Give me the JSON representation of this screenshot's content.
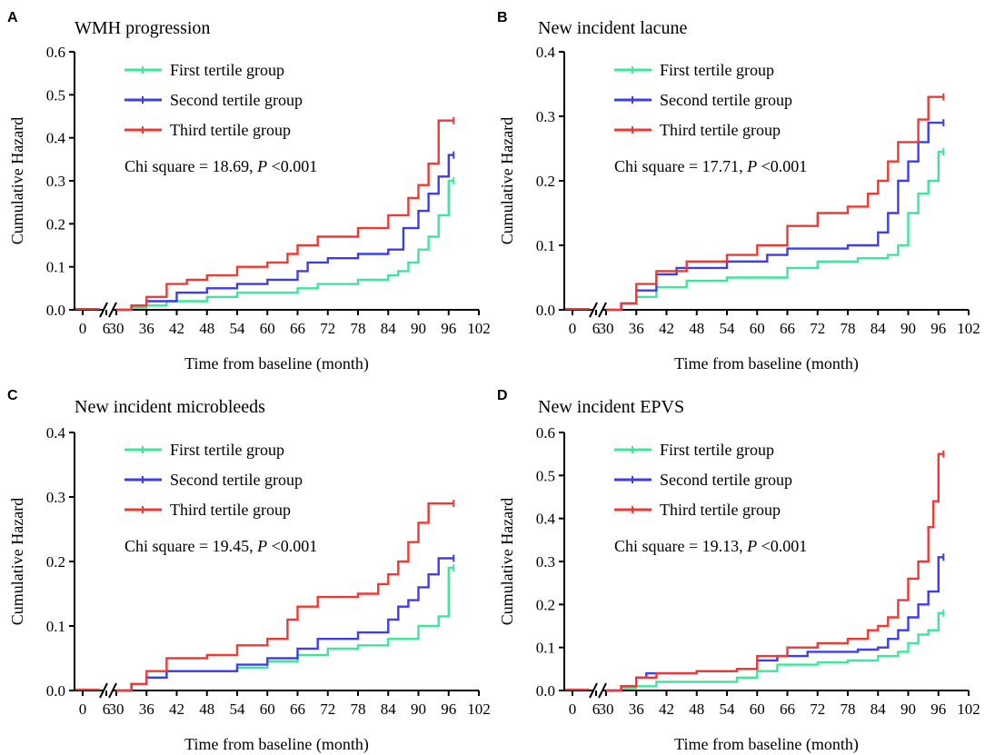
{
  "series_names": [
    "First tertile group",
    "Second tertile group",
    "Third tertile group"
  ],
  "series_colors": [
    "#3ee69a",
    "#3d3dea",
    "#ee3a32"
  ],
  "chart_data": [
    {
      "type": "line",
      "panel_letter": "A",
      "title": "WMH progression",
      "xlabel": "Time from baseline (month)",
      "ylabel": "Cumulative Hazard",
      "ylim": [
        0,
        0.6
      ],
      "yticks": [
        "0.0",
        "0.1",
        "0.2",
        "0.3",
        "0.4",
        "0.5",
        "0.6"
      ],
      "xticks": [
        "0",
        "6",
        "30",
        "36",
        "42",
        "48",
        "54",
        "60",
        "66",
        "72",
        "78",
        "84",
        "90",
        "96",
        "102"
      ],
      "stat": {
        "prefix": "Chi square = 18.69, ",
        "p": "P",
        "suffix": " <0.001"
      },
      "series": [
        {
          "name": "First tertile group",
          "x": [
            30,
            33,
            36,
            40,
            48,
            54,
            66,
            70,
            78,
            84,
            86,
            88,
            90,
            92,
            94,
            96,
            97
          ],
          "y": [
            0,
            0.005,
            0.01,
            0.02,
            0.03,
            0.04,
            0.05,
            0.06,
            0.07,
            0.08,
            0.09,
            0.11,
            0.14,
            0.17,
            0.22,
            0.3,
            0.3
          ]
        },
        {
          "name": "Second tertile group",
          "x": [
            30,
            33,
            36,
            42,
            48,
            54,
            60,
            66,
            68,
            72,
            78,
            84,
            87,
            90,
            92,
            94,
            96,
            97
          ],
          "y": [
            0,
            0.01,
            0.02,
            0.04,
            0.05,
            0.06,
            0.07,
            0.09,
            0.11,
            0.12,
            0.13,
            0.14,
            0.19,
            0.23,
            0.27,
            0.31,
            0.36,
            0.36
          ]
        },
        {
          "name": "Third tertile group",
          "x": [
            30,
            33,
            36,
            40,
            44,
            48,
            54,
            60,
            64,
            66,
            70,
            78,
            84,
            88,
            90,
            92,
            94,
            96,
            97
          ],
          "y": [
            0,
            0.01,
            0.03,
            0.06,
            0.07,
            0.08,
            0.1,
            0.11,
            0.13,
            0.15,
            0.17,
            0.19,
            0.22,
            0.26,
            0.29,
            0.34,
            0.44,
            0.44,
            0.44
          ]
        }
      ]
    },
    {
      "type": "line",
      "panel_letter": "B",
      "title": "New incident lacune",
      "xlabel": "Time from baseline (month)",
      "ylabel": "Cumulative Hazard",
      "ylim": [
        0,
        0.4
      ],
      "yticks": [
        "0.0",
        "0.1",
        "0.2",
        "0.3",
        "0.4"
      ],
      "xticks": [
        "0",
        "6",
        "30",
        "36",
        "42",
        "48",
        "54",
        "60",
        "66",
        "72",
        "78",
        "84",
        "90",
        "96",
        "102"
      ],
      "stat": {
        "prefix": "Chi square = 17.71, ",
        "p": "P",
        "suffix": " <0.001"
      },
      "series": [
        {
          "name": "First tertile group",
          "x": [
            30,
            33,
            36,
            40,
            46,
            54,
            66,
            72,
            80,
            86,
            88,
            90,
            92,
            94,
            96,
            97
          ],
          "y": [
            0,
            0.01,
            0.02,
            0.035,
            0.045,
            0.05,
            0.065,
            0.075,
            0.08,
            0.085,
            0.1,
            0.15,
            0.18,
            0.2,
            0.245,
            0.245
          ]
        },
        {
          "name": "Second tertile group",
          "x": [
            30,
            33,
            36,
            40,
            44,
            54,
            62,
            66,
            78,
            84,
            86,
            88,
            90,
            92,
            94,
            96,
            97
          ],
          "y": [
            0,
            0.01,
            0.03,
            0.055,
            0.065,
            0.075,
            0.085,
            0.095,
            0.1,
            0.12,
            0.15,
            0.2,
            0.23,
            0.26,
            0.29,
            0.29,
            0.29
          ]
        },
        {
          "name": "Third tertile group",
          "x": [
            30,
            33,
            36,
            40,
            46,
            54,
            60,
            66,
            72,
            78,
            82,
            84,
            86,
            88,
            92,
            94,
            96,
            97
          ],
          "y": [
            0,
            0.01,
            0.04,
            0.06,
            0.075,
            0.085,
            0.1,
            0.13,
            0.15,
            0.16,
            0.18,
            0.2,
            0.23,
            0.26,
            0.295,
            0.33,
            0.33,
            0.33
          ]
        }
      ]
    },
    {
      "type": "line",
      "panel_letter": "C",
      "title": "New incident microbleeds",
      "xlabel": "Time from baseline (month)",
      "ylabel": "Cumulative Hazard",
      "ylim": [
        0,
        0.4
      ],
      "yticks": [
        "0.0",
        "0.1",
        "0.2",
        "0.3",
        "0.4"
      ],
      "xticks": [
        "0",
        "6",
        "30",
        "36",
        "42",
        "48",
        "54",
        "60",
        "66",
        "72",
        "78",
        "84",
        "90",
        "96",
        "102"
      ],
      "stat": {
        "prefix": "Chi square = 19.45, ",
        "p": "P",
        "suffix": " <0.001"
      },
      "series": [
        {
          "name": "First tertile group",
          "x": [
            30,
            33,
            36,
            40,
            54,
            60,
            66,
            72,
            78,
            84,
            90,
            94,
            96,
            97
          ],
          "y": [
            0,
            0.01,
            0.02,
            0.03,
            0.035,
            0.045,
            0.055,
            0.065,
            0.07,
            0.08,
            0.1,
            0.115,
            0.19,
            0.19
          ]
        },
        {
          "name": "Second tertile group",
          "x": [
            30,
            33,
            36,
            40,
            54,
            60,
            66,
            70,
            78,
            84,
            86,
            88,
            90,
            92,
            94,
            96,
            97
          ],
          "y": [
            0,
            0.01,
            0.02,
            0.03,
            0.04,
            0.05,
            0.065,
            0.08,
            0.09,
            0.11,
            0.13,
            0.14,
            0.16,
            0.18,
            0.205,
            0.205,
            0.205
          ]
        },
        {
          "name": "Third tertile group",
          "x": [
            30,
            33,
            36,
            40,
            48,
            54,
            60,
            64,
            66,
            70,
            78,
            82,
            84,
            86,
            88,
            90,
            92,
            96,
            97
          ],
          "y": [
            0,
            0.01,
            0.03,
            0.05,
            0.055,
            0.07,
            0.08,
            0.11,
            0.13,
            0.145,
            0.15,
            0.165,
            0.18,
            0.2,
            0.23,
            0.26,
            0.29,
            0.29,
            0.29
          ]
        }
      ]
    },
    {
      "type": "line",
      "panel_letter": "D",
      "title": "New incident EPVS",
      "xlabel": "Time from baseline (month)",
      "ylabel": "Cumulative Hazard",
      "ylim": [
        0,
        0.6
      ],
      "yticks": [
        "0.0",
        "0.1",
        "0.2",
        "0.3",
        "0.4",
        "0.5",
        "0.6"
      ],
      "xticks": [
        "0",
        "6",
        "30",
        "36",
        "42",
        "48",
        "54",
        "60",
        "66",
        "72",
        "78",
        "84",
        "90",
        "96",
        "102"
      ],
      "stat": {
        "prefix": "Chi square = 19.13, ",
        "p": "P",
        "suffix": " <0.001"
      },
      "series": [
        {
          "name": "First tertile group",
          "x": [
            30,
            33,
            36,
            40,
            56,
            60,
            64,
            72,
            78,
            84,
            88,
            90,
            92,
            94,
            96,
            97
          ],
          "y": [
            0,
            0.005,
            0.01,
            0.02,
            0.03,
            0.045,
            0.06,
            0.065,
            0.07,
            0.08,
            0.09,
            0.11,
            0.13,
            0.14,
            0.18,
            0.18
          ]
        },
        {
          "name": "Second tertile group",
          "x": [
            30,
            33,
            36,
            38,
            48,
            56,
            60,
            64,
            70,
            80,
            84,
            86,
            88,
            90,
            92,
            94,
            96,
            97
          ],
          "y": [
            0,
            0.01,
            0.03,
            0.04,
            0.045,
            0.05,
            0.07,
            0.08,
            0.09,
            0.095,
            0.1,
            0.12,
            0.14,
            0.17,
            0.2,
            0.23,
            0.31,
            0.31
          ]
        },
        {
          "name": "Third tertile group",
          "x": [
            30,
            33,
            36,
            40,
            48,
            56,
            60,
            66,
            72,
            78,
            82,
            84,
            86,
            88,
            90,
            92,
            94,
            95,
            96,
            97
          ],
          "y": [
            0,
            0.01,
            0.03,
            0.04,
            0.045,
            0.05,
            0.08,
            0.1,
            0.11,
            0.12,
            0.14,
            0.15,
            0.17,
            0.21,
            0.26,
            0.3,
            0.38,
            0.44,
            0.55,
            0.55
          ]
        }
      ]
    }
  ]
}
